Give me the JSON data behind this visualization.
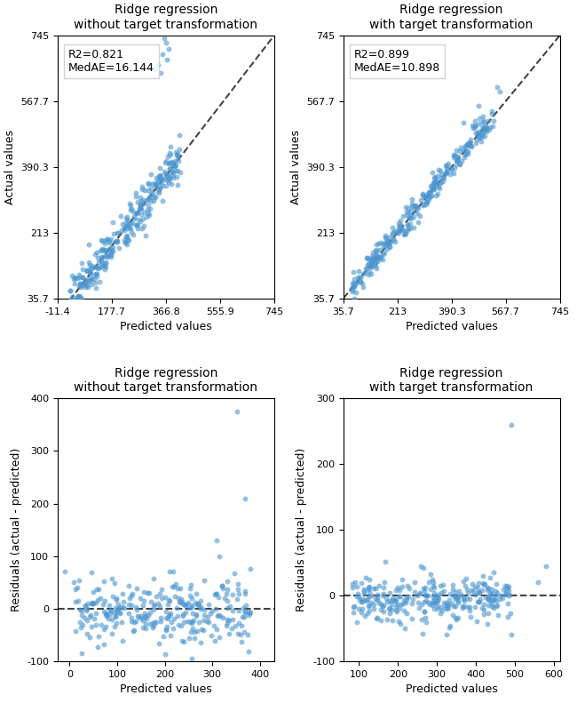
{
  "top_left": {
    "title": "Ridge regression\nwithout target transformation",
    "r2": 0.821,
    "medae": 16.144,
    "xlim": [
      -11.4,
      745.0
    ],
    "ylim": [
      35.7,
      745.0
    ],
    "xticks": [
      -11.4,
      177.7,
      366.8,
      555.9,
      745.0
    ],
    "yticks": [
      35.7,
      213.0,
      390.3,
      567.7,
      745.0
    ],
    "xlabel": "Predicted values",
    "ylabel": "Actual values"
  },
  "top_right": {
    "title": "Ridge regression\nwith target transformation",
    "r2": 0.899,
    "medae": 10.898,
    "xlim": [
      35.7,
      745.0
    ],
    "ylim": [
      35.7,
      745.0
    ],
    "xticks": [
      35.7,
      213.0,
      390.3,
      567.7,
      745.0
    ],
    "yticks": [
      35.7,
      213.0,
      390.3,
      567.7,
      745.0
    ],
    "xlabel": "Predicted values",
    "ylabel": "Actual values"
  },
  "bot_left": {
    "title": "Ridge regression\nwithout target transformation",
    "xlim": [
      -25,
      430
    ],
    "ylim": [
      -100,
      400
    ],
    "xticks": [
      0,
      100,
      200,
      300,
      400
    ],
    "yticks": [
      -100,
      0,
      100,
      200,
      300,
      400
    ],
    "xlabel": "Predicted values",
    "ylabel": "Residuals (actual - predicted)"
  },
  "bot_right": {
    "title": "Ridge regression\nwith target transformation",
    "xlim": [
      60,
      615
    ],
    "ylim": [
      -100,
      300
    ],
    "xticks": [
      100,
      200,
      300,
      400,
      500,
      600
    ],
    "yticks": [
      -100,
      0,
      100,
      200,
      300
    ],
    "xlabel": "Predicted values",
    "ylabel": "Residuals (actual - predicted)"
  },
  "dot_color": "#4C96D0",
  "dot_alpha": 0.6,
  "dot_size": 18,
  "seed": 42
}
